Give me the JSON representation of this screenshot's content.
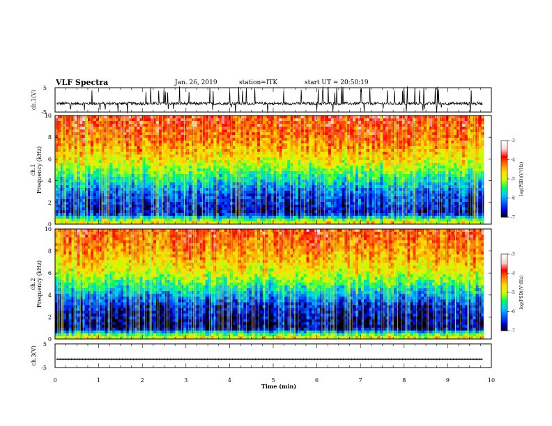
{
  "header": {
    "title": "VLF Spectra",
    "date": "Jan. 26, 2019",
    "station": "station=ITK",
    "start": "start UT = 20:50:19"
  },
  "colors": {
    "background": "#ffffff",
    "trace": "#000000",
    "colormap": [
      "#000000",
      "#0000d0",
      "#0060ff",
      "#00c8ff",
      "#00ff60",
      "#c8ff00",
      "#ffe000",
      "#ff8000",
      "#ff0000",
      "#ffd0d0",
      "#ffffff"
    ]
  },
  "chart_data": [
    {
      "id": "ch1-voltage",
      "type": "line",
      "ylabel": "ch.1(V)",
      "ylim": [
        -5,
        5
      ],
      "yticks": [
        "5",
        "-5"
      ],
      "xlim": [
        0,
        10
      ],
      "description_values": {
        "baseline_v": -1.5,
        "noise_v": 0.6,
        "max_spike_v": 5
      },
      "series": [
        {
          "values": "noisy trace around -1.5 V with frequent impulsive spikes to +/-5 V"
        }
      ]
    },
    {
      "id": "ch1-spectrogram",
      "type": "heatmap",
      "ylabel": "ch.1\nFrequency (kHz)",
      "ylim": [
        0,
        10
      ],
      "yticks": [
        "0",
        "2",
        "4",
        "6",
        "8",
        "10"
      ],
      "xlim": [
        0,
        9.83
      ],
      "colorbar": {
        "label": "log(PSD)(V²/Hz)",
        "range": [
          -7,
          -3
        ],
        "ticks": [
          "-3",
          "-4",
          "-5",
          "-6",
          "-7"
        ]
      },
      "profile_log_psd": [
        {
          "freq_khz": 0.2,
          "level": -4.5
        },
        {
          "freq_khz": 1,
          "level": -6.8
        },
        {
          "freq_khz": 3,
          "level": -6.2
        },
        {
          "freq_khz": 4.5,
          "level": -5.3
        },
        {
          "freq_khz": 6,
          "level": -4.4
        },
        {
          "freq_khz": 8,
          "level": -3.7
        },
        {
          "freq_khz": 10,
          "level": -3.4
        }
      ]
    },
    {
      "id": "ch2-spectrogram",
      "type": "heatmap",
      "ylabel": "ch.2\nFrequency (kHz)",
      "ylim": [
        0,
        10
      ],
      "yticks": [
        "0",
        "2",
        "4",
        "6",
        "8",
        "10"
      ],
      "xlim": [
        0,
        9.83
      ],
      "colorbar": {
        "label": "log(PSD)(V²/Hz)",
        "range": [
          -7,
          -3
        ],
        "ticks": [
          "-3",
          "-4",
          "-5",
          "-6",
          "-7"
        ]
      },
      "profile_log_psd": [
        {
          "freq_khz": 0.2,
          "level": -4.5
        },
        {
          "freq_khz": 1,
          "level": -7.0
        },
        {
          "freq_khz": 3,
          "level": -6.6
        },
        {
          "freq_khz": 4.5,
          "level": -5.6
        },
        {
          "freq_khz": 6,
          "level": -4.6
        },
        {
          "freq_khz": 8,
          "level": -3.9
        },
        {
          "freq_khz": 10,
          "level": -3.5
        }
      ]
    },
    {
      "id": "ch3-voltage",
      "type": "line",
      "ylabel": "ch.3(V)",
      "ylim": [
        -5,
        5
      ],
      "yticks": [
        "5",
        "-5"
      ],
      "xlim": [
        0,
        10
      ],
      "series": [
        {
          "values": "flat trace at about -1.5 V"
        }
      ],
      "description_values": {
        "baseline_v": -1.5
      }
    }
  ],
  "xaxis": {
    "label": "Time (min)",
    "ticks": [
      "0",
      "1",
      "2",
      "3",
      "4",
      "5",
      "6",
      "7",
      "8",
      "9",
      "10"
    ],
    "range": [
      0,
      10
    ]
  }
}
